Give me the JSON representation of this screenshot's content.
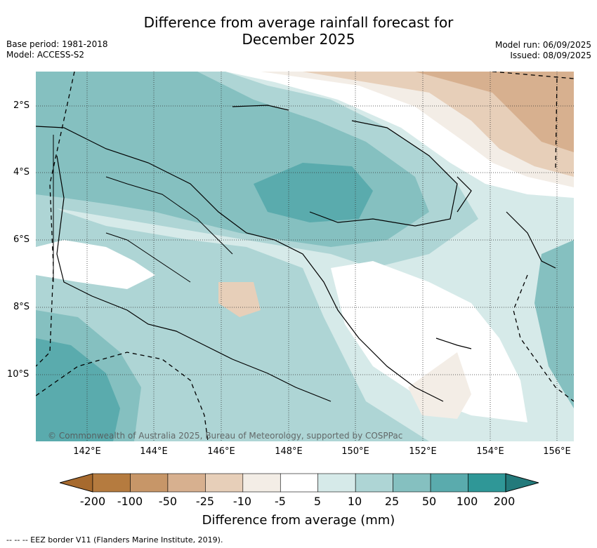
{
  "title_line1": "Difference from average rainfall forecast for",
  "title_line2": "December 2025",
  "meta_left": {
    "base_period": "Base period: 1981-2018",
    "model": "Model: ACCESS-S2"
  },
  "meta_right": {
    "model_run": "Model run: 06/09/2025",
    "issued": "Issued: 08/09/2025"
  },
  "y_axis_labels": [
    "2°S",
    "4°S",
    "6°S",
    "8°S",
    "10°S"
  ],
  "x_axis_labels": [
    "142°E",
    "144°E",
    "146°E",
    "148°E",
    "150°E",
    "152°E",
    "154°E",
    "156°E"
  ],
  "credit": "© Commonwealth of Australia 2025, Bureau of Meteorology, supported by COSPPac",
  "colorbar": {
    "ticks": [
      "-200",
      "-100",
      "-50",
      "-25",
      "-10",
      "-5",
      "5",
      "10",
      "25",
      "50",
      "100",
      "200"
    ],
    "colors": [
      "#a76a2e",
      "#b57b3f",
      "#c79668",
      "#d7b08f",
      "#e7cfb9",
      "#f3ede6",
      "#ffffff",
      "#d6eae9",
      "#aed5d5",
      "#85c0c0",
      "#5aabad",
      "#2f9797",
      "#237a7b"
    ],
    "label": "Difference from average (mm)"
  },
  "footnote": "--  --  -- EEZ border V11 (Flanders Marine Institute, 2019)."
}
